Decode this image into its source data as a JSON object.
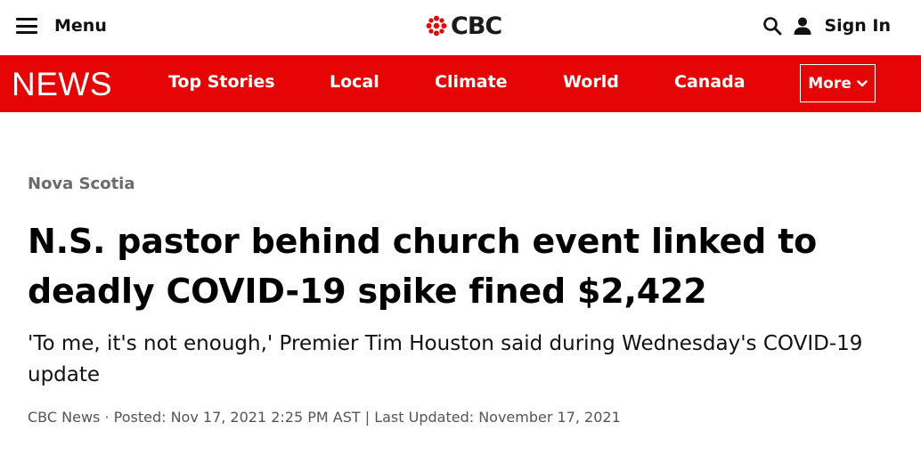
{
  "header": {
    "menu_label": "Menu",
    "logo_text": "CBC",
    "sign_in_label": "Sign In",
    "icons": [
      "hamburger-icon",
      "cbc-gem-icon",
      "search-icon",
      "user-icon"
    ]
  },
  "nav": {
    "brand": "NEWS",
    "items": [
      {
        "label": "Top Stories"
      },
      {
        "label": "Local"
      },
      {
        "label": "Climate"
      },
      {
        "label": "World"
      },
      {
        "label": "Canada"
      }
    ],
    "more_label": "More"
  },
  "article": {
    "section": "Nova Scotia",
    "headline": "N.S. pastor behind church event linked to deadly COVID-19 spike fined $2,422",
    "deck": "'To me, it's not enough,' Premier Tim Houston said during Wednesday's COVID-19 update",
    "byline": "CBC News · Posted: Nov 17, 2021 2:25 PM AST | Last Updated: November 17, 2021"
  },
  "colors": {
    "brand_red": "#e60505",
    "text": "#000000",
    "muted": "#6b6b6b"
  }
}
